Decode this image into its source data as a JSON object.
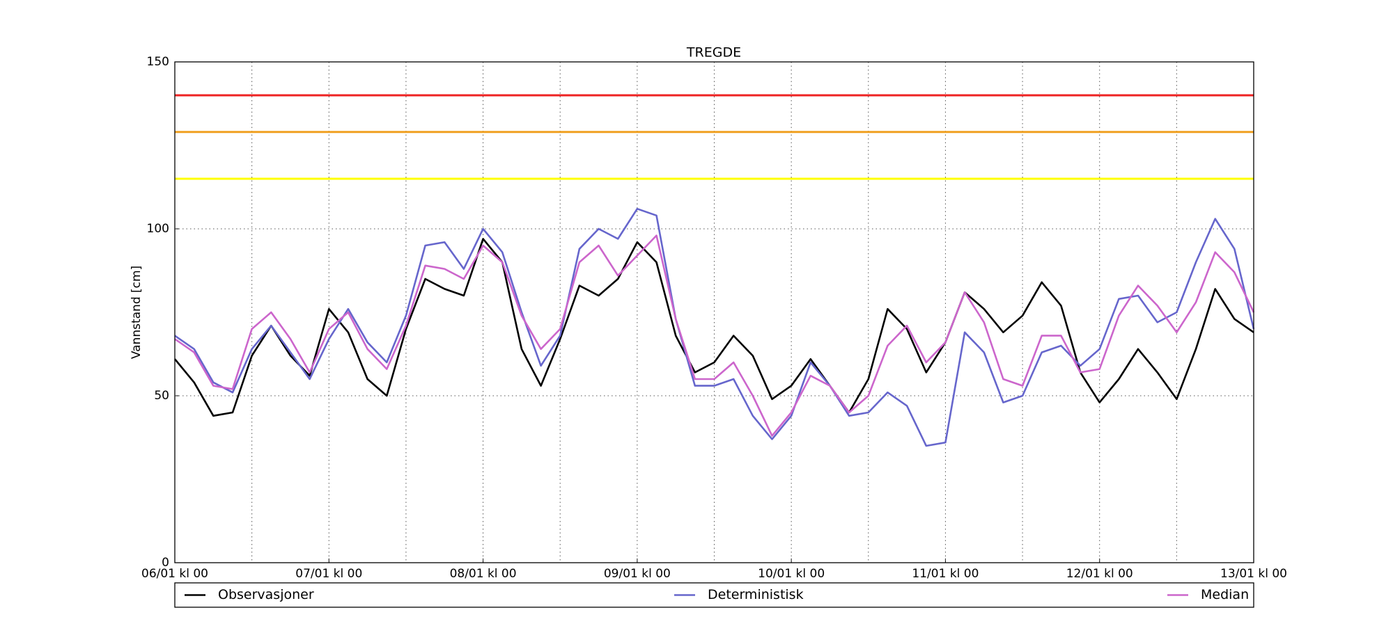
{
  "chart_data": {
    "type": "line",
    "title": "TREGDE",
    "y_label": "Vannstand [cm]",
    "x": [
      0,
      3,
      6,
      9,
      12,
      15,
      18,
      21,
      24,
      27,
      30,
      33,
      36,
      39,
      42,
      45,
      48,
      51,
      54,
      57,
      60,
      63,
      66,
      69,
      72,
      75,
      78,
      81,
      84,
      87,
      90,
      93,
      96,
      99,
      102,
      105,
      108,
      111,
      114,
      117,
      120,
      123,
      126,
      129,
      132,
      135,
      138,
      141,
      144,
      147,
      150,
      153,
      156,
      159,
      162,
      165,
      168
    ],
    "series": [
      {
        "name": "Observasjoner",
        "color": "#000000",
        "values": [
          61,
          54,
          44,
          45,
          62,
          71,
          62,
          56,
          76,
          69,
          55,
          50,
          70,
          85,
          82,
          80,
          97,
          90,
          64,
          53,
          67,
          83,
          80,
          85,
          96,
          90,
          68,
          57,
          60,
          68,
          62,
          49,
          53,
          61,
          53,
          45,
          55,
          76,
          70,
          57,
          66,
          81,
          76,
          69,
          74,
          84,
          77,
          57,
          48,
          55,
          64,
          57,
          49,
          64,
          82,
          73,
          69
        ]
      },
      {
        "name": "Deterministisk",
        "color": "#6666cc",
        "values": [
          68,
          64,
          54,
          51,
          64,
          71,
          63,
          55,
          67,
          76,
          66,
          60,
          74,
          95,
          96,
          88,
          100,
          93,
          75,
          59,
          68,
          94,
          100,
          97,
          106,
          104,
          73,
          53,
          53,
          55,
          44,
          37,
          44,
          60,
          53,
          44,
          45,
          51,
          47,
          35,
          36,
          69,
          63,
          48,
          50,
          63,
          65,
          59,
          64,
          79,
          80,
          72,
          75,
          90,
          103,
          94,
          70
        ]
      },
      {
        "name": "Median",
        "color": "#cc66cc",
        "values": [
          67,
          63,
          53,
          52,
          70,
          75,
          67,
          57,
          70,
          75,
          64,
          58,
          71,
          89,
          88,
          85,
          95,
          90,
          74,
          64,
          70,
          90,
          95,
          86,
          92,
          98,
          73,
          55,
          55,
          60,
          50,
          38,
          45,
          56,
          53,
          45,
          50,
          65,
          71,
          60,
          66,
          81,
          72,
          55,
          53,
          68,
          68,
          57,
          58,
          74,
          83,
          77,
          69,
          78,
          93,
          87,
          75
        ]
      }
    ],
    "thresholds": [
      {
        "value": 140,
        "color": "#ee2222"
      },
      {
        "value": 129,
        "color": "#f0a020"
      },
      {
        "value": 115,
        "color": "#ffff00"
      }
    ],
    "xlim": [
      0,
      168
    ],
    "xticks": [
      {
        "value": 0,
        "label": "06/01 kl 00"
      },
      {
        "value": 24,
        "label": "07/01 kl 00"
      },
      {
        "value": 48,
        "label": "08/01 kl 00"
      },
      {
        "value": 72,
        "label": "09/01 kl 00"
      },
      {
        "value": 96,
        "label": "10/01 kl 00"
      },
      {
        "value": 120,
        "label": "11/01 kl 00"
      },
      {
        "value": 144,
        "label": "12/01 kl 00"
      },
      {
        "value": 168,
        "label": "13/01 kl 00"
      }
    ],
    "ylim": [
      0,
      150
    ],
    "yticks": [
      0,
      50,
      100,
      150
    ],
    "grid": true,
    "legend": "bottom"
  }
}
